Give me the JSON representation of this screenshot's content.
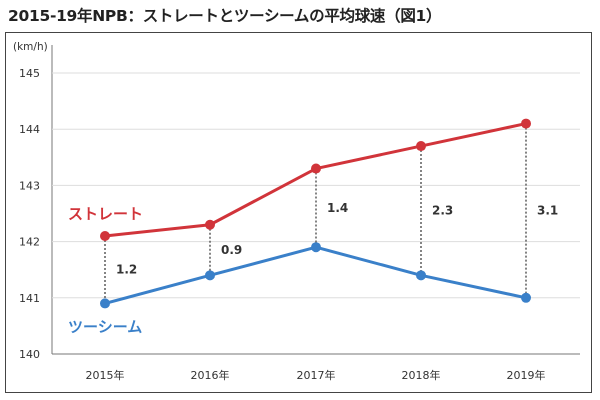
{
  "chart_data": {
    "type": "line",
    "title": "2015-19年NPB：ストレートとツーシームの平均球速（図1）",
    "ylabel": "(km/h)",
    "xlabel": "",
    "categories": [
      "2015年",
      "2016年",
      "2017年",
      "2018年",
      "2019年"
    ],
    "ylim": [
      140,
      145
    ],
    "yticks": [
      140,
      141,
      142,
      143,
      144,
      145
    ],
    "grid": true,
    "series": [
      {
        "name": "ストレート",
        "color": "#d1343a",
        "values": [
          142.1,
          142.3,
          143.3,
          143.7,
          144.1
        ]
      },
      {
        "name": "ツーシーム",
        "color": "#3a80c9",
        "values": [
          140.9,
          141.4,
          141.9,
          141.4,
          141.0
        ]
      }
    ],
    "differences": [
      "1.2",
      "0.9",
      "1.4",
      "2.3",
      "3.1"
    ],
    "legend_placement": "inline-left"
  }
}
